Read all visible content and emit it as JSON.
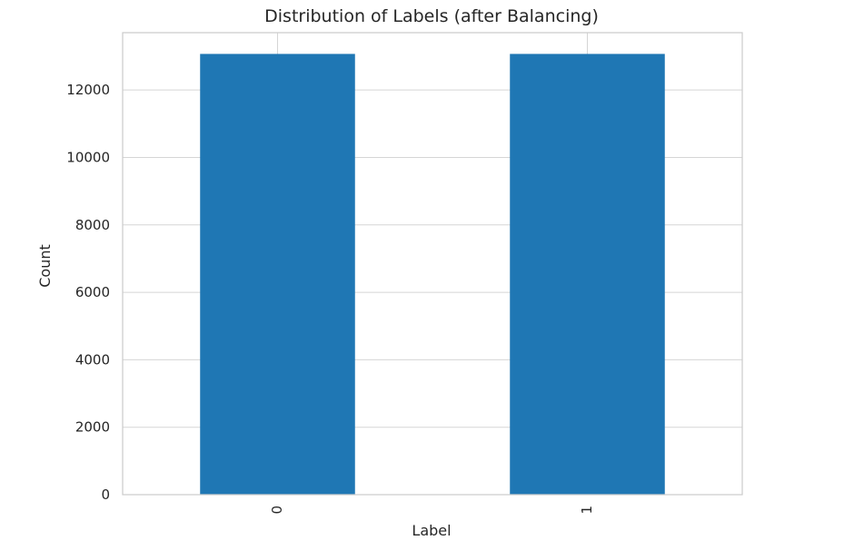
{
  "chart_data": {
    "type": "bar",
    "title": "Distribution of Labels (after Balancing)",
    "xlabel": "Label",
    "ylabel": "Count",
    "categories": [
      "0",
      "1"
    ],
    "values": [
      13070,
      13070
    ],
    "ylim": [
      0,
      13700
    ],
    "yticks": [
      0,
      2000,
      4000,
      6000,
      8000,
      10000,
      12000
    ],
    "ytick_labels": [
      "0",
      "2000",
      "4000",
      "6000",
      "8000",
      "10000",
      "12000"
    ],
    "xtick_rotation_degrees": 90,
    "grid": true,
    "legend": "none",
    "colors": {
      "bar": "#1f77b4",
      "grid": "#d5d5d5",
      "frame": "#cccccc",
      "text": "#262626"
    }
  }
}
